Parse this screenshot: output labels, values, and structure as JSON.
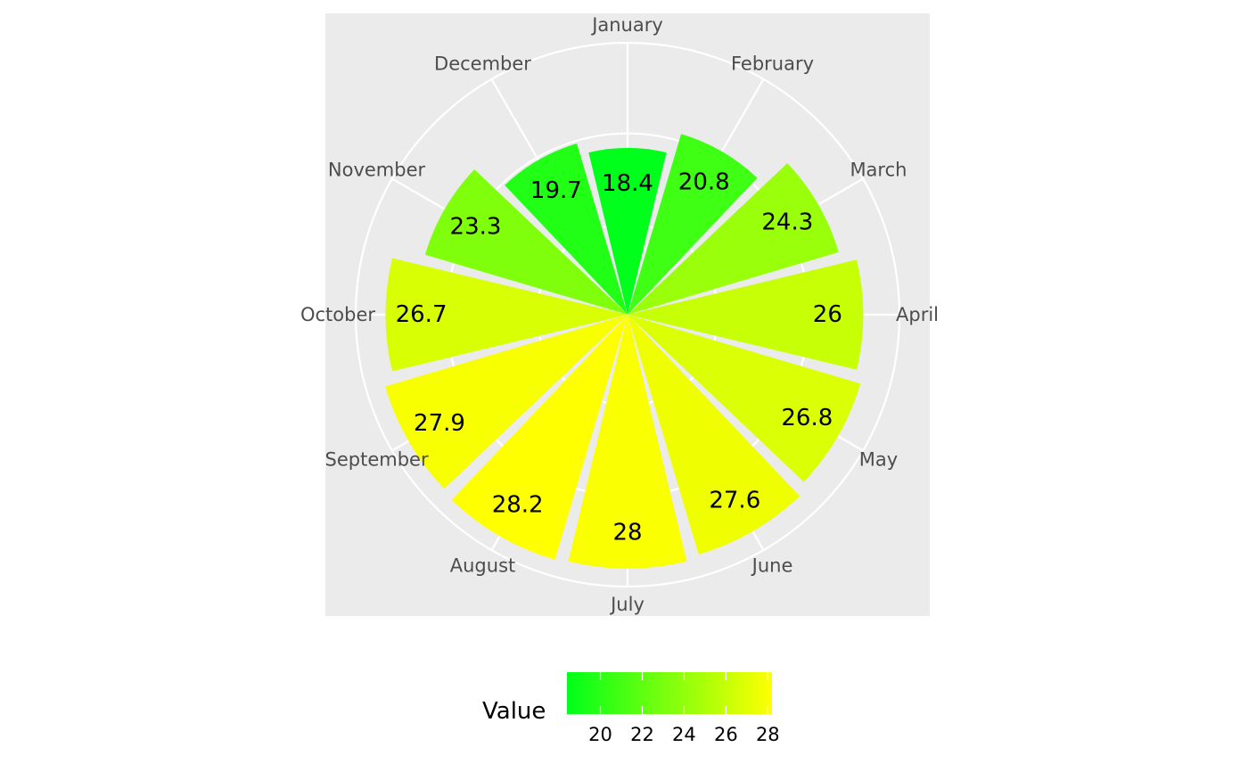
{
  "chart_data": {
    "type": "bar",
    "coord": "polar",
    "categories": [
      "January",
      "February",
      "March",
      "April",
      "May",
      "June",
      "July",
      "August",
      "September",
      "October",
      "November",
      "December"
    ],
    "values": [
      18.4,
      20.8,
      24.3,
      26,
      26.8,
      27.6,
      28,
      28.2,
      27.9,
      26.7,
      23.3,
      19.7
    ],
    "value_labels": [
      "18.4",
      "20.8",
      "24.3",
      "26",
      "26.8",
      "27.6",
      "28",
      "28.2",
      "27.9",
      "26.7",
      "23.3",
      "19.7"
    ],
    "radial_limits": [
      0,
      30
    ],
    "title": "",
    "xlabel": "",
    "ylabel": "",
    "grid": true,
    "panel_background": "#ebebeb",
    "grid_color": "#ffffff",
    "color_scale": {
      "low": "#00ff1a",
      "high": "#ffff00",
      "min": 18.4,
      "max": 28.2
    },
    "legend": {
      "position": "bottom",
      "title": "Value",
      "breaks": [
        20,
        22,
        24,
        26,
        28
      ],
      "break_labels": [
        "20",
        "22",
        "24",
        "26",
        "28"
      ]
    }
  }
}
